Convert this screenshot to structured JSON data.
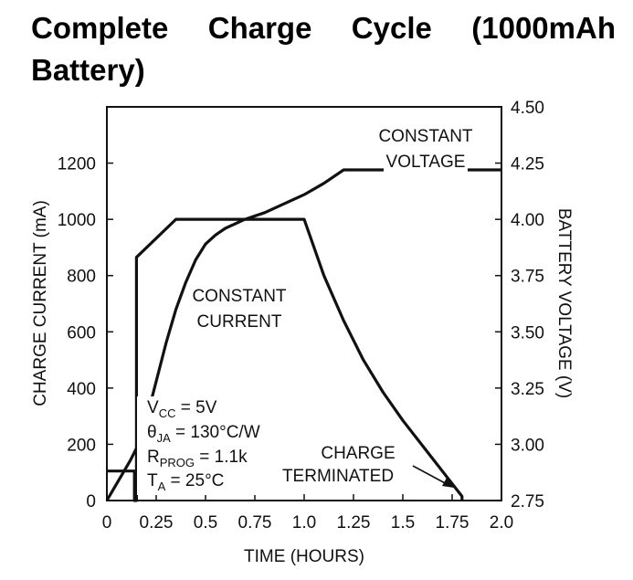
{
  "title": "Complete Charge Cycle (1000mAh Battery)",
  "chart_data": {
    "type": "line",
    "xlabel": "TIME (HOURS)",
    "ylabel_left": "CHARGE CURRENT (mA)",
    "ylabel_right": "BATTERY VOLTAGE (V)",
    "xlim": [
      0,
      2.0
    ],
    "ylim_left": [
      0,
      1400
    ],
    "ylim_right": [
      2.75,
      4.5
    ],
    "x_ticks": [
      "0",
      "0.25",
      "0.5",
      "0.75",
      "1.0",
      "1.25",
      "1.5",
      "1.75",
      "2.0"
    ],
    "x_tick_values": [
      0,
      0.25,
      0.5,
      0.75,
      1.0,
      1.25,
      1.5,
      1.75,
      2.0
    ],
    "y_left_ticks": [
      "0",
      "200",
      "400",
      "600",
      "800",
      "1000",
      "1200"
    ],
    "y_left_tick_values": [
      0,
      200,
      400,
      600,
      800,
      1000,
      1200
    ],
    "y_right_ticks": [
      "2.75",
      "3.00",
      "3.25",
      "3.50",
      "3.75",
      "4.00",
      "4.25",
      "4.50"
    ],
    "y_right_tick_values": [
      2.75,
      3.0,
      3.25,
      3.5,
      3.75,
      4.0,
      4.25,
      4.5
    ],
    "grid": false,
    "series": [
      {
        "axis": "left",
        "x": [
          0,
          0.14,
          0.14,
          0.15,
          0.15,
          0.35,
          1.0,
          1.05,
          1.1,
          1.2,
          1.3,
          1.4,
          1.5,
          1.6,
          1.7,
          1.8,
          1.8
        ],
        "values": [
          105,
          105,
          0,
          0,
          865,
          1000,
          1000,
          900,
          800,
          640,
          500,
          385,
          285,
          195,
          105,
          15,
          0
        ]
      },
      {
        "axis": "right",
        "x": [
          0,
          0.04,
          0.08,
          0.12,
          0.16,
          0.2,
          0.25,
          0.3,
          0.35,
          0.4,
          0.45,
          0.5,
          0.55,
          0.6,
          0.7,
          0.8,
          0.9,
          1.0,
          1.1,
          1.2,
          1.4,
          1.6,
          1.8,
          2.0
        ],
        "values": [
          2.75,
          2.81,
          2.87,
          2.93,
          3.0,
          3.11,
          3.28,
          3.45,
          3.6,
          3.72,
          3.82,
          3.89,
          3.93,
          3.96,
          4.0,
          4.03,
          4.07,
          4.11,
          4.16,
          4.22,
          4.22,
          4.22,
          4.22,
          4.22
        ]
      }
    ],
    "annotations": {
      "constant_voltage": [
        "CONSTANT",
        "VOLTAGE"
      ],
      "constant_current": [
        "CONSTANT",
        "CURRENT"
      ],
      "charge_terminated": [
        "CHARGE",
        "TERMINATED"
      ],
      "conditions": [
        {
          "main": "V",
          "sub": "CC",
          "rest": " = 5V"
        },
        {
          "main": "θ",
          "sub": "JA",
          "rest": " = 130°C/W"
        },
        {
          "main": "R",
          "sub": "PROG",
          "rest": " = 1.1k"
        },
        {
          "main": "T",
          "sub": "A",
          "rest": " = 25°C"
        }
      ]
    }
  }
}
